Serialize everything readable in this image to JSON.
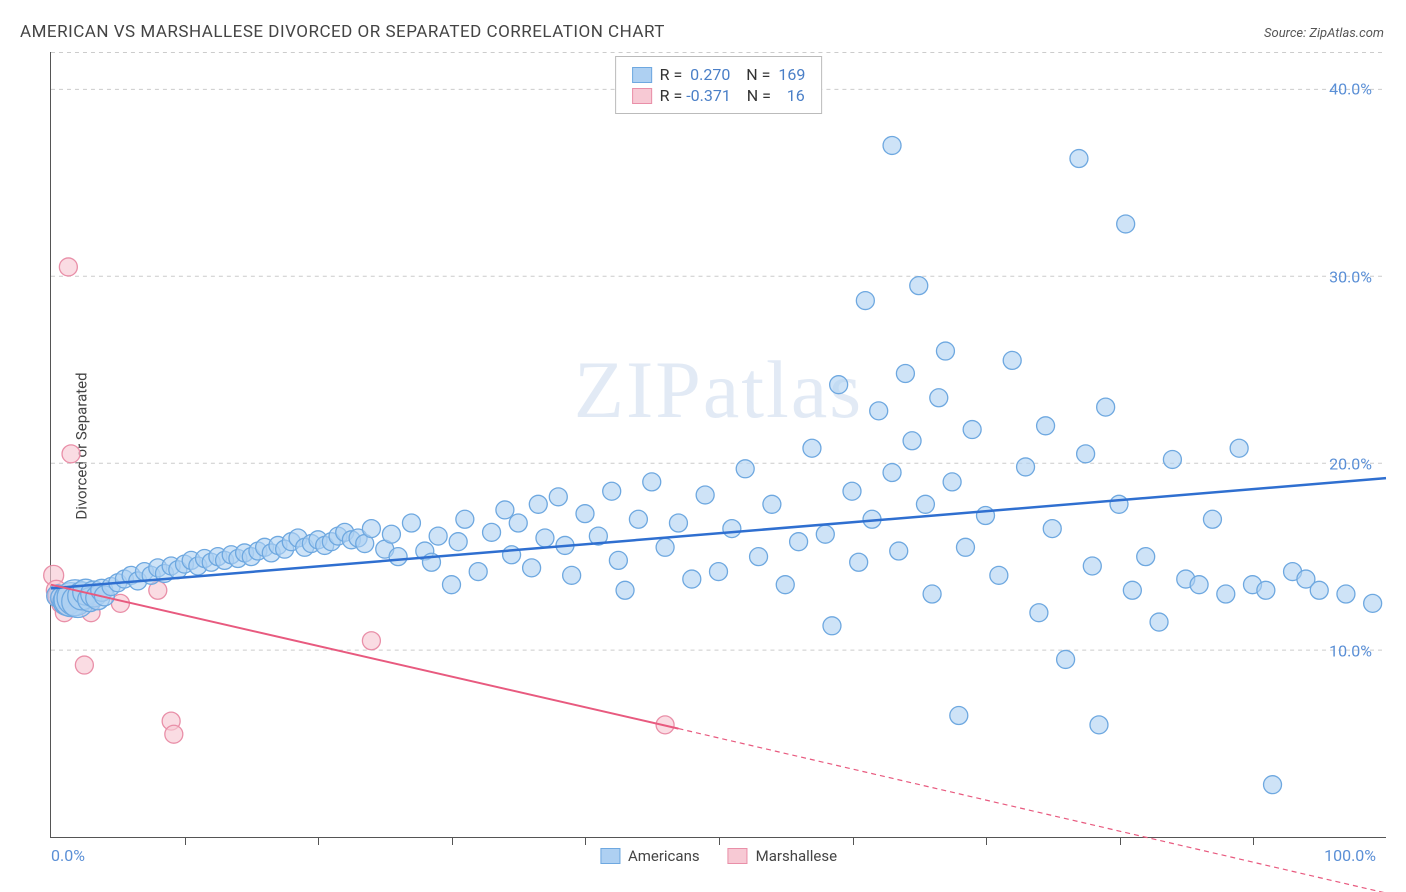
{
  "title": "AMERICAN VS MARSHALLESE DIVORCED OR SEPARATED CORRELATION CHART",
  "source": "Source: ZipAtlas.com",
  "y_label": "Divorced or Separated",
  "watermark": "ZIPatlas",
  "chart": {
    "type": "scatter",
    "xlim": [
      0,
      100
    ],
    "ylim": [
      0,
      42
    ],
    "x_ticks_labeled": [
      {
        "v": 0,
        "label": "0.0%"
      },
      {
        "v": 100,
        "label": "100.0%"
      }
    ],
    "x_minor_ticks": [
      10,
      20,
      30,
      40,
      50,
      60,
      70,
      80,
      90
    ],
    "y_ticks": [
      {
        "v": 10,
        "label": "10.0%"
      },
      {
        "v": 20,
        "label": "20.0%"
      },
      {
        "v": 30,
        "label": "30.0%"
      },
      {
        "v": 40,
        "label": "40.0%"
      }
    ],
    "grid_dash_color": "#cccccc",
    "axis_color": "#555555",
    "background": "#ffffff",
    "series": {
      "americans": {
        "label": "Americans",
        "fill": "#aed0f2",
        "stroke": "#6ea8e0",
        "trend_color": "#2f6fd0",
        "trend_width": 2.5,
        "default_r": 9,
        "r_value": "0.270",
        "n_value": "169",
        "trend": {
          "x1": 0,
          "y1": 13.3,
          "x2": 100,
          "y2": 19.2
        },
        "points": [
          {
            "x": 0.5,
            "y": 12.9,
            "r": 11
          },
          {
            "x": 0.8,
            "y": 12.8,
            "r": 11
          },
          {
            "x": 1.2,
            "y": 12.6,
            "r": 14
          },
          {
            "x": 1.5,
            "y": 12.7,
            "r": 17
          },
          {
            "x": 1.8,
            "y": 12.8,
            "r": 18
          },
          {
            "x": 2.0,
            "y": 12.6,
            "r": 16
          },
          {
            "x": 2.3,
            "y": 12.9,
            "r": 14
          },
          {
            "x": 2.6,
            "y": 13.1,
            "r": 13
          },
          {
            "x": 2.9,
            "y": 12.7,
            "r": 12
          },
          {
            "x": 3.2,
            "y": 13.0,
            "r": 13
          },
          {
            "x": 3.5,
            "y": 12.8,
            "r": 12
          },
          {
            "x": 3.8,
            "y": 13.2,
            "r": 11
          },
          {
            "x": 4.0,
            "y": 12.9,
            "r": 10
          },
          {
            "x": 4.5,
            "y": 13.4
          },
          {
            "x": 5.0,
            "y": 13.6
          },
          {
            "x": 5.5,
            "y": 13.8
          },
          {
            "x": 6.0,
            "y": 14.0
          },
          {
            "x": 6.5,
            "y": 13.7
          },
          {
            "x": 7.0,
            "y": 14.2
          },
          {
            "x": 7.5,
            "y": 14.0
          },
          {
            "x": 8.0,
            "y": 14.4
          },
          {
            "x": 8.5,
            "y": 14.1
          },
          {
            "x": 9.0,
            "y": 14.5
          },
          {
            "x": 9.5,
            "y": 14.3
          },
          {
            "x": 10,
            "y": 14.6
          },
          {
            "x": 10.5,
            "y": 14.8
          },
          {
            "x": 11,
            "y": 14.5
          },
          {
            "x": 11.5,
            "y": 14.9
          },
          {
            "x": 12,
            "y": 14.7
          },
          {
            "x": 12.5,
            "y": 15.0
          },
          {
            "x": 13,
            "y": 14.8
          },
          {
            "x": 13.5,
            "y": 15.1
          },
          {
            "x": 14,
            "y": 14.9
          },
          {
            "x": 14.5,
            "y": 15.2
          },
          {
            "x": 15,
            "y": 15.0
          },
          {
            "x": 15.5,
            "y": 15.3
          },
          {
            "x": 16,
            "y": 15.5
          },
          {
            "x": 16.5,
            "y": 15.2
          },
          {
            "x": 17,
            "y": 15.6
          },
          {
            "x": 17.5,
            "y": 15.4
          },
          {
            "x": 18,
            "y": 15.8
          },
          {
            "x": 18.5,
            "y": 16.0
          },
          {
            "x": 19,
            "y": 15.5
          },
          {
            "x": 19.5,
            "y": 15.7
          },
          {
            "x": 20,
            "y": 15.9
          },
          {
            "x": 20.5,
            "y": 15.6
          },
          {
            "x": 21,
            "y": 15.8
          },
          {
            "x": 21.5,
            "y": 16.1
          },
          {
            "x": 22,
            "y": 16.3
          },
          {
            "x": 22.5,
            "y": 15.9
          },
          {
            "x": 23,
            "y": 16.0
          },
          {
            "x": 23.5,
            "y": 15.7
          },
          {
            "x": 24,
            "y": 16.5
          },
          {
            "x": 25,
            "y": 15.4
          },
          {
            "x": 25.5,
            "y": 16.2
          },
          {
            "x": 26,
            "y": 15.0
          },
          {
            "x": 27,
            "y": 16.8
          },
          {
            "x": 28,
            "y": 15.3
          },
          {
            "x": 28.5,
            "y": 14.7
          },
          {
            "x": 29,
            "y": 16.1
          },
          {
            "x": 30,
            "y": 13.5
          },
          {
            "x": 30.5,
            "y": 15.8
          },
          {
            "x": 31,
            "y": 17.0
          },
          {
            "x": 32,
            "y": 14.2
          },
          {
            "x": 33,
            "y": 16.3
          },
          {
            "x": 34,
            "y": 17.5
          },
          {
            "x": 34.5,
            "y": 15.1
          },
          {
            "x": 35,
            "y": 16.8
          },
          {
            "x": 36,
            "y": 14.4
          },
          {
            "x": 36.5,
            "y": 17.8
          },
          {
            "x": 37,
            "y": 16.0
          },
          {
            "x": 38,
            "y": 18.2
          },
          {
            "x": 38.5,
            "y": 15.6
          },
          {
            "x": 39,
            "y": 14.0
          },
          {
            "x": 40,
            "y": 17.3
          },
          {
            "x": 41,
            "y": 16.1
          },
          {
            "x": 42,
            "y": 18.5
          },
          {
            "x": 42.5,
            "y": 14.8
          },
          {
            "x": 43,
            "y": 13.2
          },
          {
            "x": 44,
            "y": 17.0
          },
          {
            "x": 45,
            "y": 19.0
          },
          {
            "x": 46,
            "y": 15.5
          },
          {
            "x": 47,
            "y": 16.8
          },
          {
            "x": 48,
            "y": 13.8
          },
          {
            "x": 49,
            "y": 18.3
          },
          {
            "x": 50,
            "y": 14.2
          },
          {
            "x": 51,
            "y": 16.5
          },
          {
            "x": 52,
            "y": 19.7
          },
          {
            "x": 53,
            "y": 15.0
          },
          {
            "x": 54,
            "y": 17.8
          },
          {
            "x": 55,
            "y": 13.5
          },
          {
            "x": 56,
            "y": 15.8
          },
          {
            "x": 57,
            "y": 20.8
          },
          {
            "x": 58,
            "y": 16.2
          },
          {
            "x": 58.5,
            "y": 11.3
          },
          {
            "x": 59,
            "y": 24.2
          },
          {
            "x": 60,
            "y": 18.5
          },
          {
            "x": 60.5,
            "y": 14.7
          },
          {
            "x": 61,
            "y": 28.7
          },
          {
            "x": 61.5,
            "y": 17.0
          },
          {
            "x": 62,
            "y": 22.8
          },
          {
            "x": 63,
            "y": 19.5
          },
          {
            "x": 63,
            "y": 37.0
          },
          {
            "x": 63.5,
            "y": 15.3
          },
          {
            "x": 64,
            "y": 24.8
          },
          {
            "x": 64.5,
            "y": 21.2
          },
          {
            "x": 65,
            "y": 29.5
          },
          {
            "x": 65.5,
            "y": 17.8
          },
          {
            "x": 66,
            "y": 13.0
          },
          {
            "x": 66.5,
            "y": 23.5
          },
          {
            "x": 67,
            "y": 26.0
          },
          {
            "x": 67.5,
            "y": 19.0
          },
          {
            "x": 68,
            "y": 6.5
          },
          {
            "x": 68.5,
            "y": 15.5
          },
          {
            "x": 69,
            "y": 21.8
          },
          {
            "x": 70,
            "y": 17.2
          },
          {
            "x": 71,
            "y": 14.0
          },
          {
            "x": 72,
            "y": 25.5
          },
          {
            "x": 73,
            "y": 19.8
          },
          {
            "x": 74,
            "y": 12.0
          },
          {
            "x": 74.5,
            "y": 22.0
          },
          {
            "x": 75,
            "y": 16.5
          },
          {
            "x": 76,
            "y": 9.5
          },
          {
            "x": 77,
            "y": 36.3
          },
          {
            "x": 77.5,
            "y": 20.5
          },
          {
            "x": 78,
            "y": 14.5
          },
          {
            "x": 78.5,
            "y": 6.0
          },
          {
            "x": 79,
            "y": 23.0
          },
          {
            "x": 80,
            "y": 17.8
          },
          {
            "x": 80.5,
            "y": 32.8
          },
          {
            "x": 81,
            "y": 13.2
          },
          {
            "x": 82,
            "y": 15.0
          },
          {
            "x": 83,
            "y": 11.5
          },
          {
            "x": 84,
            "y": 20.2
          },
          {
            "x": 85,
            "y": 13.8
          },
          {
            "x": 86,
            "y": 13.5
          },
          {
            "x": 87,
            "y": 17.0
          },
          {
            "x": 88,
            "y": 13.0
          },
          {
            "x": 89,
            "y": 20.8
          },
          {
            "x": 90,
            "y": 13.5
          },
          {
            "x": 91,
            "y": 13.2
          },
          {
            "x": 91.5,
            "y": 2.8
          },
          {
            "x": 93,
            "y": 14.2
          },
          {
            "x": 94,
            "y": 13.8
          },
          {
            "x": 95,
            "y": 13.2
          },
          {
            "x": 97,
            "y": 13.0
          },
          {
            "x": 99,
            "y": 12.5
          }
        ]
      },
      "marshallese": {
        "label": "Marshallese",
        "fill": "#f7c9d4",
        "stroke": "#e98fa8",
        "trend_color": "#e85a7f",
        "trend_width": 2,
        "default_r": 9,
        "r_value": "-0.371",
        "n_value": "16",
        "trend_solid": {
          "x1": 0,
          "y1": 13.5,
          "x2": 47,
          "y2": 5.8
        },
        "trend_dashed": {
          "x1": 47,
          "y1": 5.8,
          "x2": 100,
          "y2": -3.0
        },
        "points": [
          {
            "x": 0.2,
            "y": 14.0,
            "r": 10
          },
          {
            "x": 0.4,
            "y": 13.2,
            "r": 10
          },
          {
            "x": 0.6,
            "y": 12.9,
            "r": 11
          },
          {
            "x": 0.8,
            "y": 12.5,
            "r": 10
          },
          {
            "x": 1.0,
            "y": 12.0,
            "r": 9
          },
          {
            "x": 1.3,
            "y": 30.5
          },
          {
            "x": 1.5,
            "y": 20.5
          },
          {
            "x": 2.5,
            "y": 9.2
          },
          {
            "x": 3.0,
            "y": 12.0
          },
          {
            "x": 5.2,
            "y": 12.5
          },
          {
            "x": 8.0,
            "y": 13.2
          },
          {
            "x": 9.0,
            "y": 6.2
          },
          {
            "x": 9.2,
            "y": 5.5
          },
          {
            "x": 24.0,
            "y": 10.5
          },
          {
            "x": 46.0,
            "y": 6.0
          }
        ]
      }
    },
    "legend_bottom": [
      {
        "label": "Americans",
        "fill": "#aed0f2",
        "stroke": "#6ea8e0"
      },
      {
        "label": "Marshallese",
        "fill": "#f7c9d4",
        "stroke": "#e98fa8"
      }
    ]
  }
}
